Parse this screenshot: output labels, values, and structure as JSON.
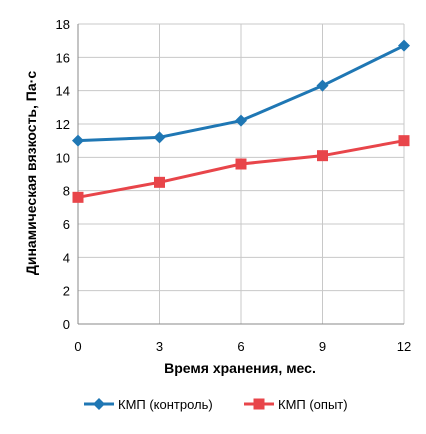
{
  "chart_data": {
    "type": "line",
    "title": "",
    "xlabel": "Время хранения, мес.",
    "ylabel": "Динамическая вязкость, Па·с",
    "x": [
      0,
      3,
      6,
      9,
      12
    ],
    "x_tick_labels": [
      "0",
      "3",
      "6",
      "9",
      "12"
    ],
    "y_tick_labels": [
      "0",
      "2",
      "4",
      "6",
      "8",
      "10",
      "12",
      "14",
      "16",
      "18"
    ],
    "xlim": [
      0,
      12
    ],
    "ylim": [
      0,
      18
    ],
    "grid": true,
    "legend_position": "bottom",
    "series": [
      {
        "name": "КМП (контроль)",
        "values": [
          11.0,
          11.2,
          12.2,
          14.3,
          16.7
        ],
        "color": "#1f77b4",
        "marker": "diamond"
      },
      {
        "name": "КМП (опыт)",
        "values": [
          7.6,
          8.5,
          9.6,
          10.1,
          11.0
        ],
        "color": "#e8454a",
        "marker": "square"
      }
    ]
  }
}
